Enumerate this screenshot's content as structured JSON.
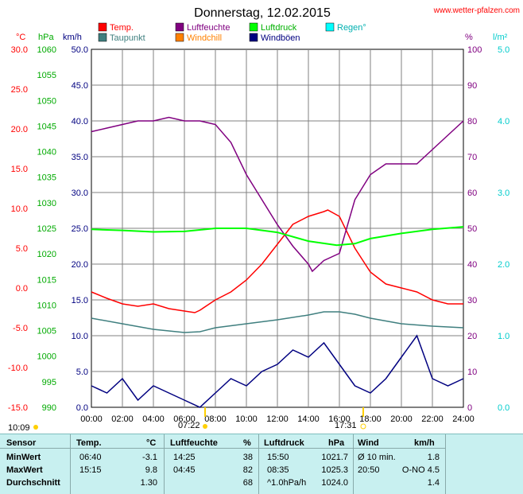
{
  "chart_data": {
    "type": "line",
    "title": "Donnerstag, 12.02.2015",
    "source": "www.wetter-pfalzen.com",
    "x_ticks": [
      "00:00",
      "02:00",
      "04:00",
      "06:00",
      "08:00",
      "10:00",
      "12:00",
      "14:00",
      "16:00",
      "18:00",
      "20:00",
      "22:00",
      "24:00"
    ],
    "axes": {
      "temp": {
        "unit": "°C",
        "color": "#ff0000",
        "range": [
          -15,
          30
        ],
        "ticks": [
          "30.0",
          "25.0",
          "20.0",
          "15.0",
          "10.0",
          "5.0",
          "0.0",
          "-5.0",
          "-10.0",
          "-15.0"
        ]
      },
      "press": {
        "unit": "hPa",
        "color": "#00aa00",
        "range": [
          990,
          1060
        ],
        "ticks": [
          "1060",
          "1055",
          "1050",
          "1045",
          "1040",
          "1035",
          "1030",
          "1025",
          "1020",
          "1015",
          "1010",
          "1005",
          "1000",
          "995",
          "990"
        ]
      },
      "wind": {
        "unit": "km/h",
        "color": "#000080",
        "range": [
          0,
          50
        ],
        "ticks": [
          "50.0",
          "45.0",
          "40.0",
          "35.0",
          "30.0",
          "25.0",
          "20.0",
          "15.0",
          "10.0",
          "5.0",
          "0.0"
        ]
      },
      "hum": {
        "unit": "%",
        "color": "#800080",
        "range": [
          0,
          100
        ],
        "ticks": [
          "100",
          "90",
          "80",
          "70",
          "60",
          "50",
          "40",
          "30",
          "20",
          "10",
          "0"
        ]
      },
      "rain": {
        "unit": "l/m²",
        "color": "#00cccc",
        "range": [
          0,
          5
        ],
        "ticks": [
          "5.0",
          "4.0",
          "3.0",
          "2.0",
          "1.0",
          "0.0"
        ]
      }
    },
    "legend": [
      {
        "label": "Temp.",
        "color": "#ff0000"
      },
      {
        "label": "Luftfeuchte",
        "color": "#800080"
      },
      {
        "label": "Luftdruck",
        "color": "#00ff00"
      },
      {
        "label": "Regen°",
        "color": "#00ffff"
      },
      {
        "label": "Taupunkt",
        "color": "#3f7f7f"
      },
      {
        "label": "Windchill",
        "color": "#ff8000"
      },
      {
        "label": "Windböen",
        "color": "#000080"
      }
    ],
    "series": [
      {
        "name": "Temp.",
        "axis": "temp",
        "color": "#ff0000",
        "x": [
          0,
          1,
          2,
          3,
          4,
          5,
          6,
          6.67,
          7,
          8,
          9,
          10,
          11,
          12,
          13,
          14,
          15,
          15.25,
          16,
          17,
          18,
          19,
          20,
          21,
          22,
          23,
          24
        ],
        "y": [
          -0.5,
          -1.3,
          -2.0,
          -2.3,
          -2.0,
          -2.6,
          -2.9,
          -3.1,
          -2.8,
          -1.5,
          -0.5,
          1.0,
          3.0,
          5.5,
          8.0,
          9.0,
          9.6,
          9.8,
          9.0,
          5.0,
          2.0,
          0.5,
          0.0,
          -0.5,
          -1.5,
          -2.0,
          -2.0
        ]
      },
      {
        "name": "Taupunkt",
        "axis": "temp",
        "color": "#3f7f7f",
        "x": [
          0,
          2,
          4,
          6,
          7,
          8,
          10,
          12,
          14,
          15,
          16,
          17,
          18,
          20,
          22,
          24
        ],
        "y": [
          -3.8,
          -4.5,
          -5.2,
          -5.6,
          -5.5,
          -5.0,
          -4.5,
          -4.0,
          -3.4,
          -3.0,
          -3.0,
          -3.3,
          -3.8,
          -4.5,
          -4.8,
          -5.0
        ]
      },
      {
        "name": "Luftfeuchte",
        "axis": "hum",
        "color": "#800080",
        "x": [
          0,
          1,
          2,
          3,
          4,
          5,
          6,
          7,
          8,
          9,
          10,
          11,
          12,
          13,
          14,
          14.25,
          15,
          16,
          17,
          18,
          19,
          20,
          21,
          22,
          23,
          24
        ],
        "y": [
          77,
          78,
          79,
          80,
          80,
          81,
          80,
          80,
          79,
          74,
          65,
          58,
          51,
          45,
          40,
          38,
          41,
          43,
          58,
          65,
          68,
          68,
          68,
          72,
          76,
          80
        ]
      },
      {
        "name": "Luftdruck",
        "axis": "press",
        "color": "#00ff00",
        "x": [
          0,
          2,
          4,
          6,
          8,
          10,
          12,
          14,
          15.83,
          17,
          18,
          20,
          22,
          24
        ],
        "y": [
          1024.8,
          1024.6,
          1024.3,
          1024.4,
          1025.0,
          1025.0,
          1024.2,
          1022.5,
          1021.7,
          1022.0,
          1023.0,
          1024.0,
          1024.8,
          1025.3
        ]
      },
      {
        "name": "Windböen",
        "axis": "wind",
        "color": "#000080",
        "x": [
          0,
          1,
          2,
          3,
          4,
          5,
          6,
          7,
          8,
          9,
          10,
          11,
          12,
          13,
          14,
          15,
          16,
          17,
          18,
          19,
          20,
          21,
          22,
          23,
          24
        ],
        "y": [
          3,
          2,
          4,
          1,
          3,
          2,
          1,
          0,
          2,
          4,
          3,
          5,
          6,
          8,
          7,
          9,
          6,
          3,
          2,
          4,
          7,
          10,
          4,
          3,
          4
        ]
      }
    ],
    "sun_markers": {
      "sunrise_text": "07:22",
      "sunset_text": "17:31",
      "left_text": "10:09"
    }
  },
  "table": {
    "headers": {
      "sensor": "Sensor",
      "temp": "Temp.",
      "temp_unit": "°C",
      "hum": "Luftfeuchte",
      "hum_unit": "%",
      "press": "Luftdruck",
      "press_unit": "hPa",
      "wind": "Wind",
      "wind_unit": "km/h"
    },
    "rows": [
      {
        "label": "MinWert",
        "t_time": "06:40",
        "t_val": "-3.1",
        "h_time": "14:25",
        "h_val": "38",
        "p_time": "15:50",
        "p_val": "1021.7",
        "w_time": "Ø 10 min.",
        "w_val": "1.8"
      },
      {
        "label": "MaxWert",
        "t_time": "15:15",
        "t_val": "9.8",
        "h_time": "04:45",
        "h_val": "82",
        "p_time": "08:35",
        "p_val": "1025.3",
        "w_time": "20:50",
        "w_val": "O-NO 4.5"
      },
      {
        "label": "Durchschnitt",
        "t_time": "",
        "t_val": "1.30",
        "h_time": "",
        "h_val": "68",
        "p_time": "^1.0hPa/h",
        "p_val": "1024.0",
        "w_time": "",
        "w_val": "1.4"
      }
    ]
  }
}
